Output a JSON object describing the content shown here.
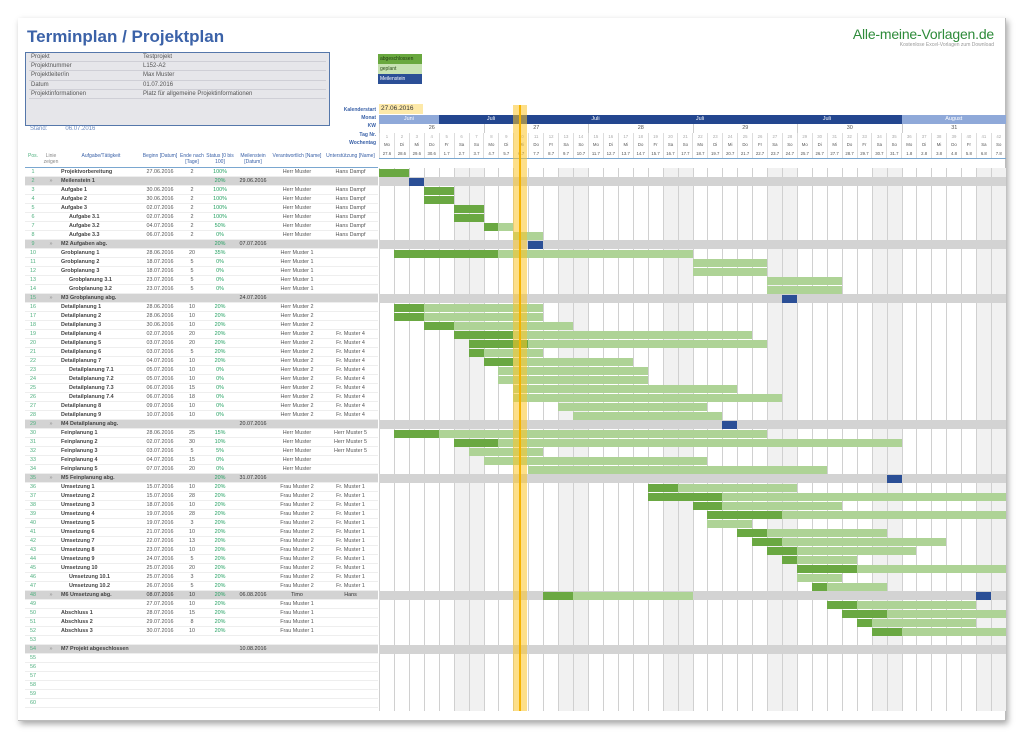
{
  "title": "Terminplan / Projektplan",
  "brand": {
    "name": "Alle-meine-Vorlagen.de",
    "tagline": "Kostenlose Excel-Vorlagen zum Download"
  },
  "info": [
    {
      "k": "Projekt",
      "v": "Testprojekt"
    },
    {
      "k": "Projektnummer",
      "v": "L152-A2"
    },
    {
      "k": "Projektleiter/in",
      "v": "Max Muster"
    },
    {
      "k": "Datum",
      "v": "01.07.2016"
    },
    {
      "k": "Projektinformationen",
      "v": "Platz für allgemeine Projektinformationen"
    }
  ],
  "stand": {
    "label": "Stand:",
    "value": "06.07.2016"
  },
  "legend": {
    "done": "abgeschlossen",
    "planned": "geplant",
    "milestone": "Meilenstein"
  },
  "colors": {
    "done": "#6aa842",
    "planned": "#aed396",
    "milestone": "#2b4f96",
    "today": "#f5b300",
    "title": "#3b62a8"
  },
  "calendar": {
    "labels": [
      "Kalenderstart",
      "Monat",
      "KW",
      "Tag Nr.",
      "Wochentag"
    ],
    "start": "27.06.2016",
    "months": [
      {
        "label": "Juni",
        "days": 4,
        "color": "#8fa9d9"
      },
      {
        "label": "Juli",
        "days": 7,
        "color": "#23468f"
      },
      {
        "label": "Juli",
        "days": 7,
        "color": "#23468f"
      },
      {
        "label": "Juli",
        "days": 7,
        "color": "#23468f"
      },
      {
        "label": "Juli",
        "days": 10,
        "color": "#23468f"
      },
      {
        "label": "August",
        "days": 7,
        "color": "#8fa9d9"
      }
    ],
    "kw": [
      {
        "label": "26",
        "days": 7
      },
      {
        "label": "27",
        "days": 7
      },
      {
        "label": "28",
        "days": 7
      },
      {
        "label": "29",
        "days": 7
      },
      {
        "label": "30",
        "days": 7
      },
      {
        "label": "31",
        "days": 7
      }
    ],
    "weekdays": [
      "Mo",
      "Di",
      "Mi",
      "Do",
      "Fr",
      "Sa",
      "So"
    ],
    "dates": [
      "27.6",
      "28.6",
      "29.6",
      "30.6",
      "1.7",
      "2.7",
      "3.7",
      "4.7",
      "5.7",
      "6.7",
      "7.7",
      "8.7",
      "9.7",
      "10.7",
      "11.7",
      "12.7",
      "13.7",
      "14.7",
      "15.7",
      "16.7",
      "17.7",
      "18.7",
      "19.7",
      "20.7",
      "21.7",
      "22.7",
      "23.7",
      "24.7",
      "25.7",
      "26.7",
      "27.7",
      "28.7",
      "29.7",
      "30.7",
      "31.7",
      "1.8",
      "2.8",
      "3.8",
      "4.8",
      "5.8",
      "6.8",
      "7.8"
    ],
    "today_index": 9
  },
  "columns": {
    "pos": "Pos.",
    "lin": "Linie zeigen",
    "task": "Aufgabe/Tätigkeit",
    "beg": "Beginn [Datum]",
    "dur": "Ende nach [Tage]",
    "st": "Status [0 bis 100]",
    "msd": "Meilenstein [Datum]",
    "ver": "Verantwortlich [Name]",
    "unt": "Unterstützung [Name]"
  },
  "rows": [
    {
      "pos": "1",
      "task": "Projektvorbereitung",
      "beg": "27.06.2016",
      "dur": "2",
      "st": "100%",
      "ver": "Herr Muster",
      "unt": "Hans Dampf",
      "bar": [
        0,
        2,
        2
      ]
    },
    {
      "pos": "2",
      "ms": true,
      "lin": "»",
      "task": "Meilenstein 1",
      "st": "20%",
      "msd": "29.06.2016",
      "m": 2
    },
    {
      "pos": "3",
      "task": "Aufgabe 1",
      "beg": "30.06.2016",
      "dur": "2",
      "st": "100%",
      "ver": "Herr Muster",
      "unt": "Hans Dampf",
      "bar": [
        3,
        2,
        2
      ]
    },
    {
      "pos": "4",
      "task": "Aufgabe 2",
      "beg": "30.06.2016",
      "dur": "2",
      "st": "100%",
      "ver": "Herr Muster",
      "unt": "Hans Dampf",
      "bar": [
        3,
        2,
        2
      ]
    },
    {
      "pos": "5",
      "task": "Aufgabe 3",
      "beg": "02.07.2016",
      "dur": "2",
      "st": "100%",
      "ver": "Herr Muster",
      "unt": "Hans Dampf",
      "bar": [
        5,
        2,
        2
      ]
    },
    {
      "pos": "6",
      "ind": 1,
      "task": "Aufgabe 3.1",
      "beg": "02.07.2016",
      "dur": "2",
      "st": "100%",
      "ver": "Herr Muster",
      "unt": "Hans Dampf",
      "bar": [
        5,
        2,
        2
      ]
    },
    {
      "pos": "7",
      "ind": 1,
      "task": "Aufgabe 3.2",
      "beg": "04.07.2016",
      "dur": "2",
      "st": "50%",
      "ver": "Herr Muster",
      "unt": "Hans Dampf",
      "bar": [
        7,
        1,
        2
      ]
    },
    {
      "pos": "8",
      "ind": 1,
      "task": "Aufgabe 3.3",
      "beg": "06.07.2016",
      "dur": "2",
      "st": "0%",
      "ver": "Herr Muster",
      "unt": "Hans Dampf",
      "bar": [
        9,
        0,
        2
      ]
    },
    {
      "pos": "9",
      "ms": true,
      "lin": "»",
      "task": "M2 Aufgaben abg.",
      "st": "20%",
      "msd": "07.07.2016",
      "m": 10
    },
    {
      "pos": "10",
      "task": "Grobplanung 1",
      "beg": "28.06.2016",
      "dur": "20",
      "st": "35%",
      "ver": "Herr Muster 1",
      "bar": [
        1,
        7,
        20
      ]
    },
    {
      "pos": "11",
      "task": "Grobplanung 2",
      "beg": "18.07.2016",
      "dur": "5",
      "st": "0%",
      "ver": "Herr Muster 1",
      "bar": [
        21,
        0,
        5
      ]
    },
    {
      "pos": "12",
      "task": "Grobplanung 3",
      "beg": "18.07.2016",
      "dur": "5",
      "st": "0%",
      "ver": "Herr Muster 1",
      "bar": [
        21,
        0,
        5
      ]
    },
    {
      "pos": "13",
      "ind": 1,
      "task": "Grobplanung 3.1",
      "beg": "23.07.2016",
      "dur": "5",
      "st": "0%",
      "ver": "Herr Muster 1",
      "bar": [
        26,
        0,
        5
      ]
    },
    {
      "pos": "14",
      "ind": 1,
      "task": "Grobplanung 3.2",
      "beg": "23.07.2016",
      "dur": "5",
      "st": "0%",
      "ver": "Herr Muster 1",
      "bar": [
        26,
        0,
        5
      ]
    },
    {
      "pos": "15",
      "ms": true,
      "lin": "»",
      "task": "M3 Grobplanung abg.",
      "msd": "24.07.2016",
      "m": 27
    },
    {
      "pos": "16",
      "task": "Detailplanung 1",
      "beg": "28.06.2016",
      "dur": "10",
      "st": "20%",
      "ver": "Herr Muster 2",
      "bar": [
        1,
        2,
        10
      ]
    },
    {
      "pos": "17",
      "task": "Detailplanung 2",
      "beg": "28.06.2016",
      "dur": "10",
      "st": "20%",
      "ver": "Herr Muster 2",
      "bar": [
        1,
        2,
        10
      ]
    },
    {
      "pos": "18",
      "task": "Detailplanung 3",
      "beg": "30.06.2016",
      "dur": "10",
      "st": "20%",
      "ver": "Herr Muster 2",
      "bar": [
        3,
        2,
        10
      ]
    },
    {
      "pos": "19",
      "task": "Detailplanung 4",
      "beg": "02.07.2016",
      "dur": "20",
      "st": "20%",
      "ver": "Herr Muster 2",
      "unt": "Fr. Muster 4",
      "bar": [
        5,
        4,
        20
      ]
    },
    {
      "pos": "20",
      "task": "Detailplanung 5",
      "beg": "03.07.2016",
      "dur": "20",
      "st": "20%",
      "ver": "Herr Muster 2",
      "unt": "Fr. Muster 4",
      "bar": [
        6,
        4,
        20
      ]
    },
    {
      "pos": "21",
      "task": "Detailplanung 6",
      "beg": "03.07.2016",
      "dur": "5",
      "st": "20%",
      "ver": "Herr Muster 2",
      "unt": "Fr. Muster 4",
      "bar": [
        6,
        1,
        5
      ]
    },
    {
      "pos": "22",
      "task": "Detailplanung 7",
      "beg": "04.07.2016",
      "dur": "10",
      "st": "20%",
      "ver": "Herr Muster 2",
      "unt": "Fr. Muster 4",
      "bar": [
        7,
        2,
        10
      ]
    },
    {
      "pos": "23",
      "ind": 1,
      "task": "Detailplanung 7.1",
      "beg": "05.07.2016",
      "dur": "10",
      "st": "0%",
      "ver": "Herr Muster 2",
      "unt": "Fr. Muster 4",
      "bar": [
        8,
        0,
        10
      ]
    },
    {
      "pos": "24",
      "ind": 1,
      "task": "Detailplanung 7.2",
      "beg": "05.07.2016",
      "dur": "10",
      "st": "0%",
      "ver": "Herr Muster 2",
      "unt": "Fr. Muster 4",
      "bar": [
        8,
        0,
        10
      ]
    },
    {
      "pos": "25",
      "ind": 1,
      "task": "Detailplanung 7.3",
      "beg": "06.07.2016",
      "dur": "15",
      "st": "0%",
      "ver": "Herr Muster 2",
      "unt": "Fr. Muster 4",
      "bar": [
        9,
        0,
        15
      ]
    },
    {
      "pos": "26",
      "ind": 1,
      "task": "Detailplanung 7.4",
      "beg": "06.07.2016",
      "dur": "18",
      "st": "0%",
      "ver": "Herr Muster 2",
      "unt": "Fr. Muster 4",
      "bar": [
        9,
        0,
        18
      ]
    },
    {
      "pos": "27",
      "task": "Detailplanung 8",
      "beg": "09.07.2016",
      "dur": "10",
      "st": "0%",
      "ver": "Herr Muster 2",
      "unt": "Fr. Muster 4",
      "bar": [
        12,
        0,
        10
      ]
    },
    {
      "pos": "28",
      "task": "Detailplanung 9",
      "beg": "10.07.2016",
      "dur": "10",
      "st": "0%",
      "ver": "Herr Muster 2",
      "unt": "Fr. Muster 4",
      "bar": [
        13,
        0,
        10
      ]
    },
    {
      "pos": "29",
      "ms": true,
      "lin": "»",
      "task": "M4 Detailplanung abg.",
      "msd": "20.07.2016",
      "m": 23
    },
    {
      "pos": "30",
      "task": "Feinplanung 1",
      "beg": "28.06.2016",
      "dur": "25",
      "st": "15%",
      "ver": "Herr Muster",
      "unt": "Herr Muster 5",
      "bar": [
        1,
        3,
        25
      ]
    },
    {
      "pos": "31",
      "task": "Feinplanung 2",
      "beg": "02.07.2016",
      "dur": "30",
      "st": "10%",
      "ver": "Herr Muster",
      "unt": "Herr Muster 5",
      "bar": [
        5,
        3,
        30
      ]
    },
    {
      "pos": "32",
      "task": "Feinplanung 3",
      "beg": "03.07.2016",
      "dur": "5",
      "st": "5%",
      "ver": "Herr Muster",
      "unt": "Herr Muster 5",
      "bar": [
        6,
        0,
        5
      ]
    },
    {
      "pos": "33",
      "task": "Feinplanung 4",
      "beg": "04.07.2016",
      "dur": "15",
      "st": "0%",
      "ver": "Herr Muster",
      "bar": [
        7,
        0,
        15
      ]
    },
    {
      "pos": "34",
      "task": "Feinplanung 5",
      "beg": "07.07.2016",
      "dur": "20",
      "st": "0%",
      "ver": "Herr Muster",
      "bar": [
        10,
        0,
        20
      ]
    },
    {
      "pos": "35",
      "ms": true,
      "lin": "»",
      "task": "M5 Feinplanung abg.",
      "st": "20%",
      "msd": "31.07.2016",
      "m": 34
    },
    {
      "pos": "36",
      "task": "Umsetzung 1",
      "beg": "15.07.2016",
      "dur": "10",
      "st": "20%",
      "ver": "Frau Muster 2",
      "unt": "Fr. Muster 1",
      "bar": [
        18,
        2,
        10
      ]
    },
    {
      "pos": "37",
      "task": "Umsetzung 2",
      "beg": "15.07.2016",
      "dur": "28",
      "st": "20%",
      "ver": "Frau Muster 2",
      "unt": "Fr. Muster 1",
      "bar": [
        18,
        5,
        28
      ]
    },
    {
      "pos": "38",
      "task": "Umsetzung 3",
      "beg": "18.07.2016",
      "dur": "10",
      "st": "20%",
      "ver": "Frau Muster 2",
      "unt": "Fr. Muster 1",
      "bar": [
        21,
        2,
        10
      ]
    },
    {
      "pos": "39",
      "task": "Umsetzung 4",
      "beg": "19.07.2016",
      "dur": "28",
      "st": "20%",
      "ver": "Frau Muster 2",
      "unt": "Fr. Muster 1",
      "bar": [
        22,
        5,
        28
      ]
    },
    {
      "pos": "40",
      "task": "Umsetzung 5",
      "beg": "19.07.2016",
      "dur": "3",
      "st": "20%",
      "ver": "Frau Muster 2",
      "unt": "Fr. Muster 1",
      "bar": [
        22,
        0,
        3
      ]
    },
    {
      "pos": "41",
      "task": "Umsetzung 6",
      "beg": "21.07.2016",
      "dur": "10",
      "st": "20%",
      "ver": "Frau Muster 2",
      "unt": "Fr. Muster 1",
      "bar": [
        24,
        2,
        10
      ]
    },
    {
      "pos": "42",
      "task": "Umsetzung 7",
      "beg": "22.07.2016",
      "dur": "13",
      "st": "20%",
      "ver": "Frau Muster 2",
      "unt": "Fr. Muster 1",
      "bar": [
        25,
        2,
        13
      ]
    },
    {
      "pos": "43",
      "task": "Umsetzung 8",
      "beg": "23.07.2016",
      "dur": "10",
      "st": "20%",
      "ver": "Frau Muster 2",
      "unt": "Fr. Muster 1",
      "bar": [
        26,
        2,
        10
      ]
    },
    {
      "pos": "44",
      "task": "Umsetzung 9",
      "beg": "24.07.2016",
      "dur": "5",
      "st": "20%",
      "ver": "Frau Muster 2",
      "unt": "Fr. Muster 1",
      "bar": [
        27,
        1,
        5
      ]
    },
    {
      "pos": "45",
      "task": "Umsetzung 10",
      "beg": "25.07.2016",
      "dur": "20",
      "st": "20%",
      "ver": "Frau Muster 2",
      "unt": "Fr. Muster 1",
      "bar": [
        28,
        4,
        20
      ]
    },
    {
      "pos": "46",
      "ind": 1,
      "task": "Umsetzung 10.1",
      "beg": "25.07.2016",
      "dur": "3",
      "st": "20%",
      "ver": "Frau Muster 2",
      "unt": "Fr. Muster 1",
      "bar": [
        28,
        0,
        3
      ]
    },
    {
      "pos": "47",
      "ind": 1,
      "task": "Umsetzung 10.2",
      "beg": "26.07.2016",
      "dur": "5",
      "st": "20%",
      "ver": "Frau Muster 2",
      "unt": "Fr. Muster 1",
      "bar": [
        29,
        1,
        5
      ]
    },
    {
      "pos": "48",
      "ms": true,
      "lin": "»",
      "task": "M6 Umsetzung abg.",
      "beg": "08.07.2016",
      "dur": "10",
      "st": "20%",
      "msd": "06.08.2016",
      "ver": "Timo",
      "unt": "Hans",
      "bar": [
        11,
        2,
        10
      ],
      "m": 40
    },
    {
      "pos": "49",
      "beg": "27.07.2016",
      "dur": "10",
      "st": "20%",
      "ver": "Frau Muster 1",
      "bar": [
        30,
        2,
        10
      ]
    },
    {
      "pos": "50",
      "task": "Abschluss 1",
      "beg": "28.07.2016",
      "dur": "15",
      "st": "20%",
      "ver": "Frau Muster 1",
      "bar": [
        31,
        3,
        15
      ]
    },
    {
      "pos": "51",
      "task": "Abschluss 2",
      "beg": "29.07.2016",
      "dur": "8",
      "st": "20%",
      "ver": "Frau Muster 1",
      "bar": [
        32,
        1,
        8
      ]
    },
    {
      "pos": "52",
      "task": "Abschluss 3",
      "beg": "30.07.2016",
      "dur": "10",
      "st": "20%",
      "ver": "Frau Muster 1",
      "bar": [
        33,
        2,
        10
      ]
    },
    {
      "pos": "53"
    },
    {
      "pos": "54",
      "ms": true,
      "lin": "»",
      "task": "M7 Projekt abgeschlossen",
      "msd": "10.08.2016"
    },
    {
      "pos": "55"
    },
    {
      "pos": "56"
    },
    {
      "pos": "57"
    },
    {
      "pos": "58"
    },
    {
      "pos": "59"
    },
    {
      "pos": "60"
    }
  ]
}
